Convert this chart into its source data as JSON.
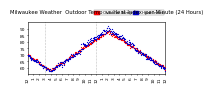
{
  "title_left": "Milwaukee Weather  Outdoor Temp",
  "title_right": "vs Heat Index  per Minute (24 Hours)",
  "bg_color": "#ffffff",
  "plot_bg_color": "#ffffff",
  "temp_color": "#ff0000",
  "heat_color": "#0000cc",
  "ylim": [
    55,
    95
  ],
  "xlim": [
    0,
    1440
  ],
  "ytick_positions": [
    60,
    65,
    70,
    75,
    80,
    85,
    90
  ],
  "ytick_labels": [
    "60",
    "65",
    "70",
    "75",
    "80",
    "85",
    "90"
  ],
  "xtick_positions": [
    0,
    60,
    120,
    180,
    240,
    300,
    360,
    420,
    480,
    540,
    600,
    660,
    720,
    780,
    840,
    900,
    960,
    1020,
    1080,
    1140,
    1200,
    1260,
    1320,
    1380,
    1440
  ],
  "xtick_labels": [
    "12",
    "1",
    "2",
    "3",
    "4",
    "5",
    "6",
    "7",
    "8",
    "9",
    "10",
    "11",
    "12",
    "1",
    "2",
    "3",
    "4",
    "5",
    "6",
    "7",
    "8",
    "9",
    "10",
    "11",
    "12"
  ],
  "vline_positions": [
    180,
    720
  ],
  "legend_labels": [
    "Outdoor Temp",
    "Heat Index"
  ],
  "legend_colors": [
    "#ff0000",
    "#0000cc"
  ],
  "title_fontsize": 3.8,
  "tick_fontsize": 3.2,
  "marker_size": 0.8
}
